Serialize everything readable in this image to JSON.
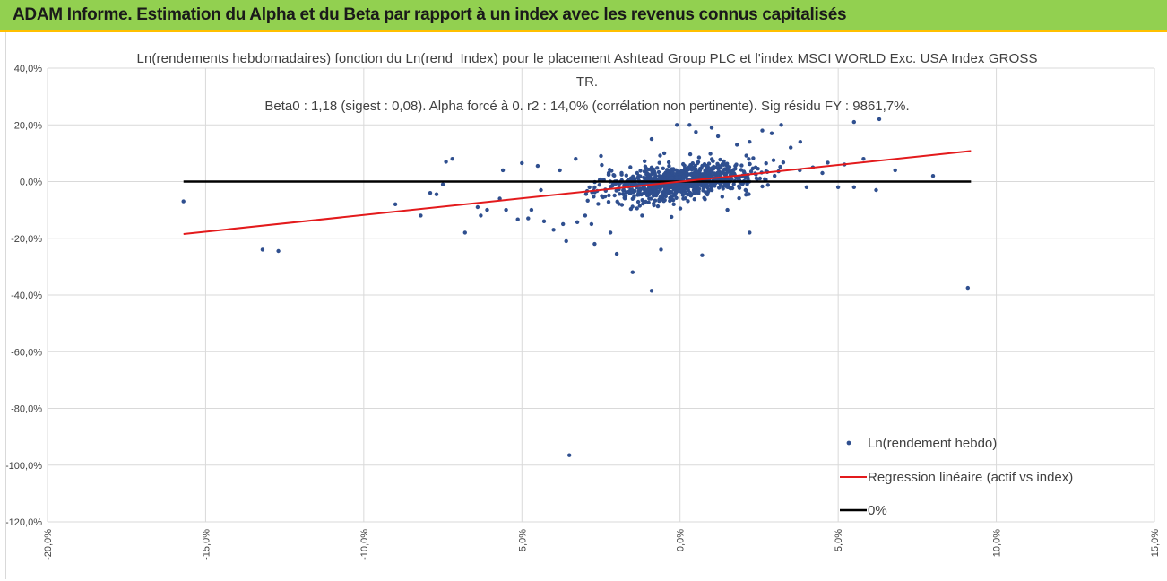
{
  "header": {
    "title": "ADAM Informe. Estimation du Alpha et du Beta par rapport à un index avec les revenus connus capitalisés"
  },
  "colors": {
    "header_bg": "#92d050",
    "header_border": "#ffc000",
    "scatter": "#2f4f8f",
    "regression": "#e31a1c",
    "zero_line": "#000000",
    "grid": "#d9d9d9"
  },
  "chart_data": {
    "type": "scatter",
    "title_lines": [
      "Ln(rendements hebdomadaires) fonction du Ln(rend_Index) pour le placement Ashtead Group PLC et l'index MSCI WORLD Exc. USA Index GROSS",
      "TR.",
      "Beta0 : 1,18 (sigest : 0,08). Alpha forcé à 0. r2 : 14,0% (corrélation non pertinente). Sig résidu FY : 9861,7%."
    ],
    "x_range": [
      -0.2,
      0.15
    ],
    "y_range": [
      -1.2,
      0.4
    ],
    "x_ticks": [
      -0.2,
      -0.15,
      -0.1,
      -0.05,
      0.0,
      0.05,
      0.1,
      0.15
    ],
    "x_tick_labels": [
      "-20,0%",
      "-15,0%",
      "-10,0%",
      "-5,0%",
      "0,0%",
      "5,0%",
      "10,0%",
      "15,0%"
    ],
    "y_ticks": [
      0.4,
      0.2,
      0.0,
      -0.2,
      -0.4,
      -0.6,
      -0.8,
      -1.0,
      -1.2
    ],
    "y_tick_labels": [
      "40,0%",
      "20,0%",
      "0,0%",
      "-20,0%",
      "-40,0%",
      "-60,0%",
      "-80,0%",
      "-100,0%",
      "-120,0%"
    ],
    "series": [
      {
        "name": "Ln(rendement hebdo)",
        "kind": "scatter",
        "cluster": {
          "n": 900,
          "seed": 7,
          "beta": 1.18,
          "x_sd": 0.012,
          "resid_sd": 0.03
        },
        "outliers": [
          {
            "x": -0.157,
            "y": -0.07
          },
          {
            "x": -0.132,
            "y": -0.24
          },
          {
            "x": -0.127,
            "y": -0.245
          },
          {
            "x": -0.09,
            "y": -0.08
          },
          {
            "x": -0.082,
            "y": -0.12
          },
          {
            "x": -0.079,
            "y": -0.04
          },
          {
            "x": -0.077,
            "y": -0.045
          },
          {
            "x": -0.074,
            "y": 0.07
          },
          {
            "x": -0.072,
            "y": 0.08
          },
          {
            "x": -0.075,
            "y": -0.01
          },
          {
            "x": -0.068,
            "y": -0.18
          },
          {
            "x": -0.064,
            "y": -0.09
          },
          {
            "x": -0.063,
            "y": -0.12
          },
          {
            "x": -0.061,
            "y": -0.1
          },
          {
            "x": -0.057,
            "y": -0.06
          },
          {
            "x": -0.056,
            "y": 0.04
          },
          {
            "x": -0.055,
            "y": -0.1
          },
          {
            "x": -0.05,
            "y": 0.065
          },
          {
            "x": -0.048,
            "y": -0.13
          },
          {
            "x": -0.047,
            "y": -0.1
          },
          {
            "x": -0.045,
            "y": 0.055
          },
          {
            "x": -0.044,
            "y": -0.03
          },
          {
            "x": -0.043,
            "y": -0.14
          },
          {
            "x": -0.04,
            "y": -0.17
          },
          {
            "x": -0.038,
            "y": 0.04
          },
          {
            "x": -0.037,
            "y": -0.15
          },
          {
            "x": -0.036,
            "y": -0.21
          },
          {
            "x": -0.033,
            "y": 0.08
          },
          {
            "x": -0.03,
            "y": -0.12
          },
          {
            "x": -0.028,
            "y": -0.15
          },
          {
            "x": -0.027,
            "y": -0.22
          },
          {
            "x": -0.025,
            "y": 0.09
          },
          {
            "x": -0.022,
            "y": -0.18
          },
          {
            "x": -0.02,
            "y": -0.255
          },
          {
            "x": -0.015,
            "y": -0.32
          },
          {
            "x": -0.012,
            "y": -0.12
          },
          {
            "x": -0.009,
            "y": -0.385
          },
          {
            "x": -0.009,
            "y": 0.15
          },
          {
            "x": -0.006,
            "y": -0.24
          },
          {
            "x": -0.005,
            "y": 0.1
          },
          {
            "x": -0.002,
            "y": -0.08
          },
          {
            "x": -0.001,
            "y": 0.2
          },
          {
            "x": 0.003,
            "y": 0.2
          },
          {
            "x": 0.005,
            "y": 0.175
          },
          {
            "x": 0.007,
            "y": -0.26
          },
          {
            "x": 0.01,
            "y": 0.19
          },
          {
            "x": 0.012,
            "y": 0.16
          },
          {
            "x": 0.015,
            "y": -0.1
          },
          {
            "x": 0.018,
            "y": 0.13
          },
          {
            "x": 0.022,
            "y": 0.14
          },
          {
            "x": 0.022,
            "y": -0.18
          },
          {
            "x": 0.026,
            "y": 0.18
          },
          {
            "x": 0.029,
            "y": 0.17
          },
          {
            "x": 0.032,
            "y": 0.2
          },
          {
            "x": 0.035,
            "y": 0.12
          },
          {
            "x": 0.038,
            "y": 0.14
          },
          {
            "x": 0.04,
            "y": -0.02
          },
          {
            "x": 0.042,
            "y": 0.05
          },
          {
            "x": 0.045,
            "y": 0.03
          },
          {
            "x": 0.05,
            "y": -0.02
          },
          {
            "x": 0.052,
            "y": 0.06
          },
          {
            "x": 0.055,
            "y": -0.02
          },
          {
            "x": 0.055,
            "y": 0.21
          },
          {
            "x": 0.058,
            "y": 0.08
          },
          {
            "x": 0.062,
            "y": -0.03
          },
          {
            "x": 0.063,
            "y": 0.22
          },
          {
            "x": 0.068,
            "y": 0.04
          },
          {
            "x": 0.08,
            "y": 0.02
          },
          {
            "x": 0.091,
            "y": -0.375
          },
          {
            "x": -0.035,
            "y": -0.965
          }
        ]
      },
      {
        "name": "Regression linéaire (actif vs index)",
        "kind": "line",
        "points": [
          {
            "x": -0.157,
            "y": -0.185
          },
          {
            "x": 0.092,
            "y": 0.108
          }
        ]
      },
      {
        "name": "0%",
        "kind": "line",
        "points": [
          {
            "x": -0.157,
            "y": 0.0
          },
          {
            "x": 0.092,
            "y": 0.0
          }
        ]
      }
    ],
    "legend": [
      {
        "label": "Ln(rendement hebdo)",
        "marker": "dot"
      },
      {
        "label": "Regression linéaire (actif vs index)",
        "marker": "line-red"
      },
      {
        "label": "0%",
        "marker": "line-black"
      }
    ],
    "legend_position": "bottom-right",
    "grid": true
  }
}
